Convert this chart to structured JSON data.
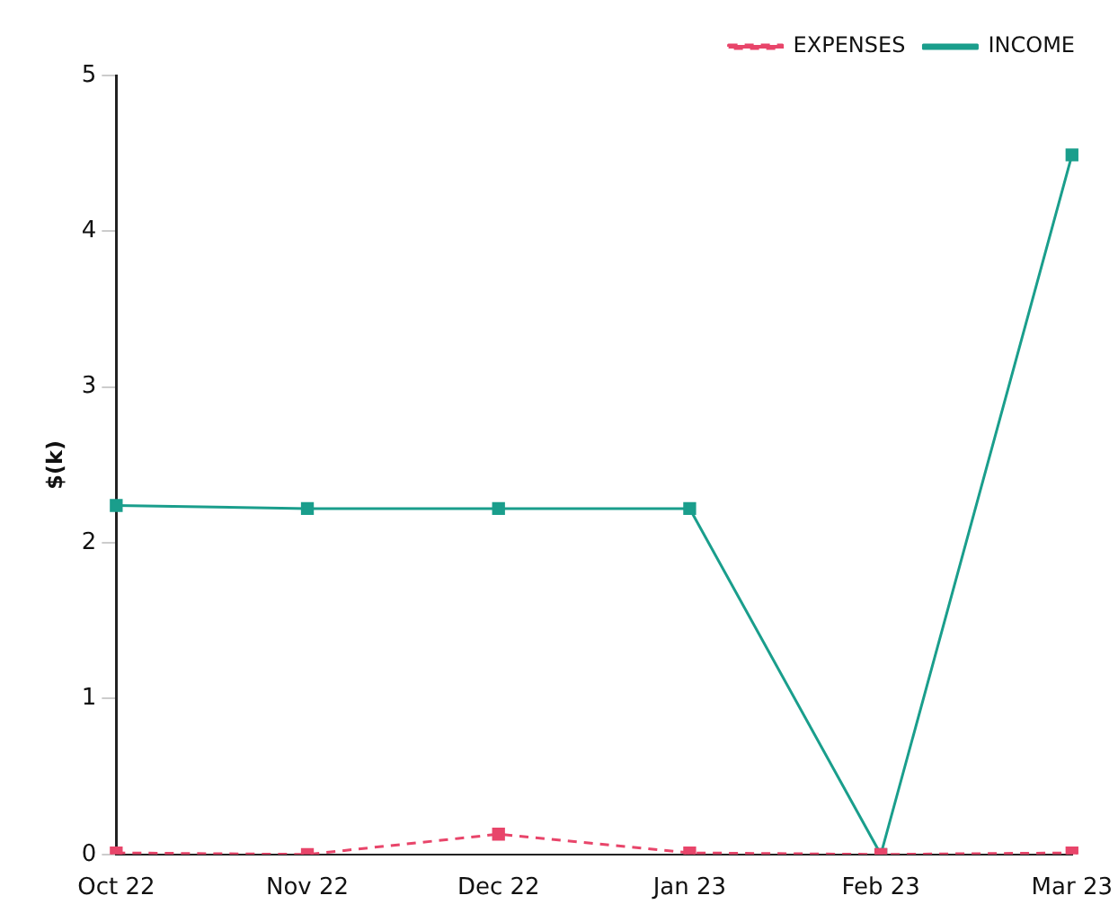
{
  "chart_data": {
    "type": "line",
    "ylabel": "$(k)",
    "categories": [
      "Oct 22",
      "Nov 22",
      "Dec 22",
      "Jan 23",
      "Feb 23",
      "Mar 23"
    ],
    "series": [
      {
        "name": "EXPENSES",
        "color": "#e8456a",
        "values": [
          0.01,
          0,
          0.13,
          0.01,
          0,
          0.01
        ],
        "line_style": "dashed"
      },
      {
        "name": "INCOME",
        "color": "#1a9e8c",
        "values": [
          2.24,
          2.22,
          2.22,
          2.22,
          0,
          4.49
        ],
        "line_style": "solid"
      }
    ],
    "ylim": [
      0,
      5
    ],
    "yticks": [
      0,
      1,
      2,
      3,
      4,
      5
    ],
    "grid": false,
    "legend": "top right",
    "marker": "square"
  }
}
